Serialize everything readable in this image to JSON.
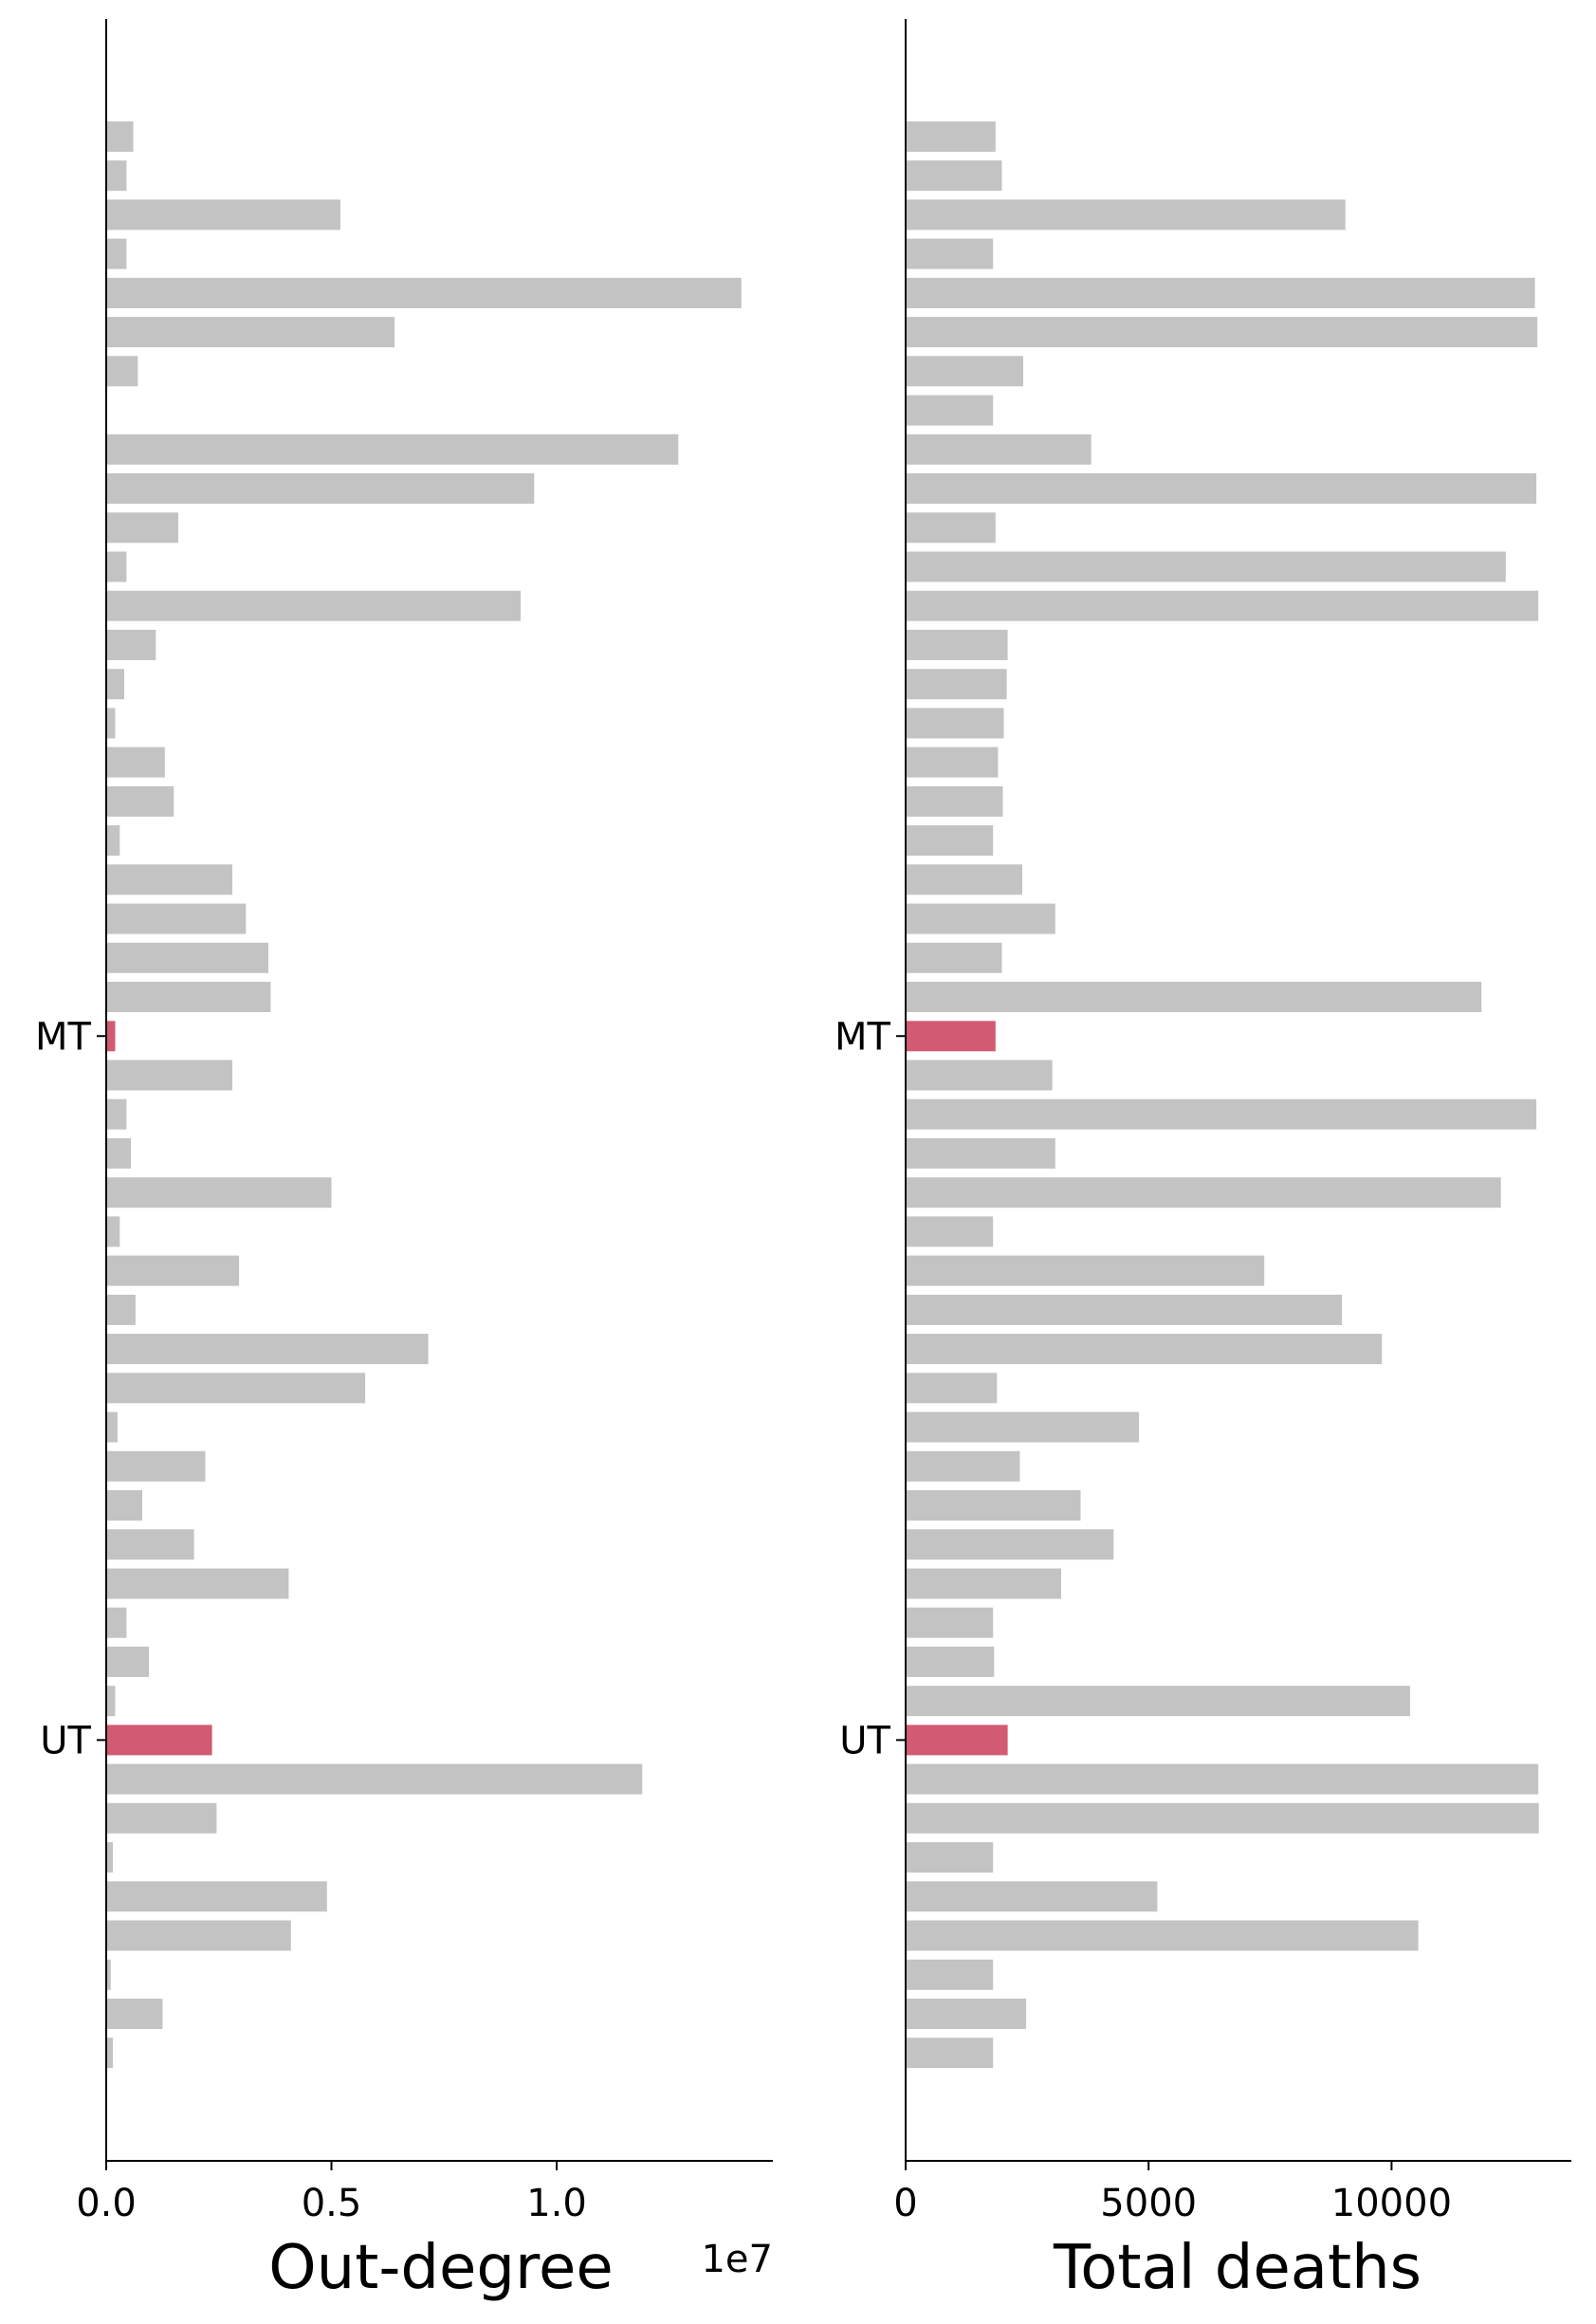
{
  "colors": {
    "bar": "#c3c3c3",
    "highlight": "#d25a73",
    "axis": "#000000"
  },
  "chart_data": [
    {
      "type": "bar",
      "orientation": "horizontal",
      "xlabel": "Out-degree",
      "scale_offset_label": "1e7",
      "xlim": [
        0,
        14800000
      ],
      "xticks": [
        0,
        5000000,
        10000000
      ],
      "xtick_labels": [
        "0.0",
        "0.5",
        "1.0"
      ],
      "ylabels": [
        {
          "row": 25,
          "label": "MT"
        },
        {
          "row": 43,
          "label": "UT"
        }
      ],
      "highlight_rows": [
        25,
        43
      ],
      "values": [
        null,
        null,
        600000,
        450000,
        5200000,
        450000,
        14100000,
        6400000,
        700000,
        null,
        12700000,
        9500000,
        1600000,
        450000,
        9200000,
        1100000,
        400000,
        200000,
        1300000,
        1500000,
        300000,
        2800000,
        3100000,
        3600000,
        3650000,
        200000,
        2800000,
        450000,
        550000,
        5000000,
        300000,
        2950000,
        650000,
        7150000,
        5750000,
        250000,
        2200000,
        800000,
        1950000,
        4050000,
        450000,
        950000,
        200000,
        2350000,
        11900000,
        2450000,
        150000,
        4900000,
        4100000,
        100000,
        1250000,
        150000,
        null,
        null
      ]
    },
    {
      "type": "bar",
      "orientation": "horizontal",
      "xlabel": "Total deaths",
      "xlim": [
        0,
        13700
      ],
      "xticks": [
        0,
        5000,
        10000
      ],
      "xtick_labels": [
        "0",
        "5000",
        "10000"
      ],
      "ylabels": [
        {
          "row": 25,
          "label": "MT"
        },
        {
          "row": 43,
          "label": "UT"
        }
      ],
      "highlight_rows": [
        25,
        43
      ],
      "values": [
        null,
        null,
        1850,
        1980,
        9050,
        1800,
        12950,
        13000,
        2420,
        1800,
        3820,
        12980,
        1850,
        12350,
        13020,
        2100,
        2080,
        2020,
        1900,
        2000,
        1800,
        2400,
        3080,
        1980,
        11850,
        1850,
        3020,
        12980,
        3080,
        12250,
        1800,
        7380,
        8980,
        9800,
        1880,
        4800,
        2350,
        3600,
        4280,
        3200,
        1800,
        1820,
        10380,
        2100,
        13020,
        13030,
        1800,
        5180,
        10550,
        1800,
        2480,
        1800,
        null,
        null
      ]
    }
  ]
}
